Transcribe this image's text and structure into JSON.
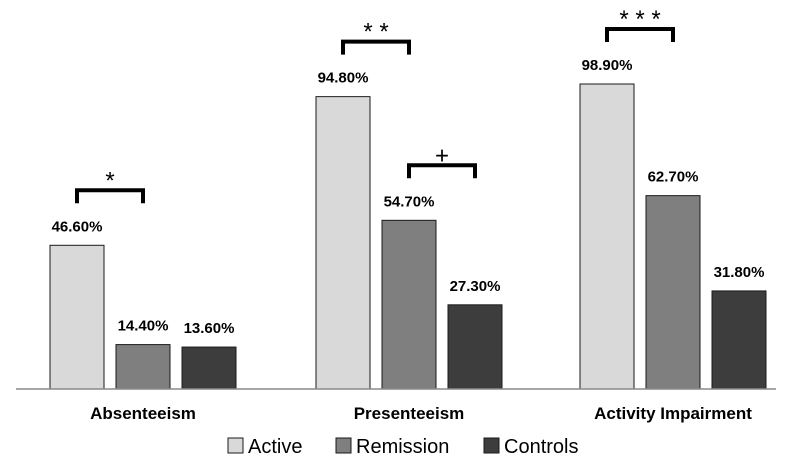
{
  "chart_data": {
    "type": "bar",
    "categories": [
      "Absenteeism",
      "Presenteeism",
      "Activity Impairment"
    ],
    "series": [
      {
        "name": "Active",
        "values": [
          46.6,
          94.8,
          98.9
        ],
        "labels": [
          "46.60%",
          "94.80%",
          "98.90%"
        ],
        "color": "#d9d9d9"
      },
      {
        "name": "Remission",
        "values": [
          14.4,
          54.7,
          62.7
        ],
        "labels": [
          "14.40%",
          "54.70%",
          "62.70%"
        ],
        "color": "#7f7f7f"
      },
      {
        "name": "Controls",
        "values": [
          13.6,
          27.3,
          31.8
        ],
        "labels": [
          "13.60%",
          "27.30%",
          "31.80%"
        ],
        "color": "#3d3d3d"
      }
    ],
    "ylim": [
      0,
      100
    ],
    "title": "",
    "xlabel": "",
    "ylabel": "",
    "grid": false,
    "legend_position": "bottom",
    "significance": [
      {
        "category": 0,
        "from_series": 0,
        "to_series": 1,
        "label": "*"
      },
      {
        "category": 1,
        "from_series": 0,
        "to_series": 1,
        "label": "* *"
      },
      {
        "category": 1,
        "from_series": 1,
        "to_series": 2,
        "label": "+"
      },
      {
        "category": 2,
        "from_series": 0,
        "to_series": 1,
        "label": "* * *"
      }
    ]
  }
}
